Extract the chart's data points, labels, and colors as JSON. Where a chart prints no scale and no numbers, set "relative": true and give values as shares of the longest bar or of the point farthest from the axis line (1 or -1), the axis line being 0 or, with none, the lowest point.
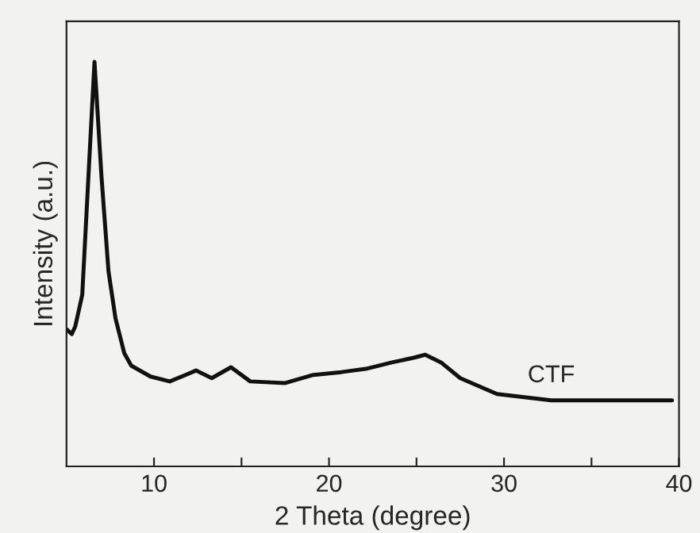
{
  "chart_data": {
    "type": "line",
    "relative": true,
    "xlabel": "2 Theta (degree)",
    "ylabel": "Intensity (a.u.)",
    "xlim": [
      5,
      40
    ],
    "xticks": [
      10,
      {
        "value": 15,
        "label": null
      },
      20,
      {
        "value": 25,
        "label": null
      },
      30,
      {
        "value": 35,
        "label": null
      },
      40
    ],
    "grid": false,
    "legend": false,
    "marker": "none",
    "line_style": "solid",
    "series": [
      {
        "name": "CTF",
        "color": "#111111",
        "x": [
          5.0,
          5.3,
          5.5,
          5.9,
          6.3,
          6.6,
          7.0,
          7.4,
          7.8,
          8.3,
          8.7,
          9.8,
          10.9,
          11.8,
          12.4,
          13.3,
          14.4,
          15.5,
          17.5,
          19.1,
          20.7,
          22.1,
          23.6,
          24.8,
          25.5,
          26.4,
          27.5,
          29.6,
          32.7,
          36.2,
          39.6
        ],
        "values": [
          0.339,
          0.327,
          0.346,
          0.424,
          0.755,
          1.0,
          0.716,
          0.482,
          0.366,
          0.28,
          0.249,
          0.222,
          0.21,
          0.226,
          0.237,
          0.218,
          0.245,
          0.21,
          0.206,
          0.226,
          0.233,
          0.241,
          0.257,
          0.268,
          0.276,
          0.257,
          0.218,
          0.179,
          0.163,
          0.163,
          0.163
        ]
      }
    ]
  }
}
